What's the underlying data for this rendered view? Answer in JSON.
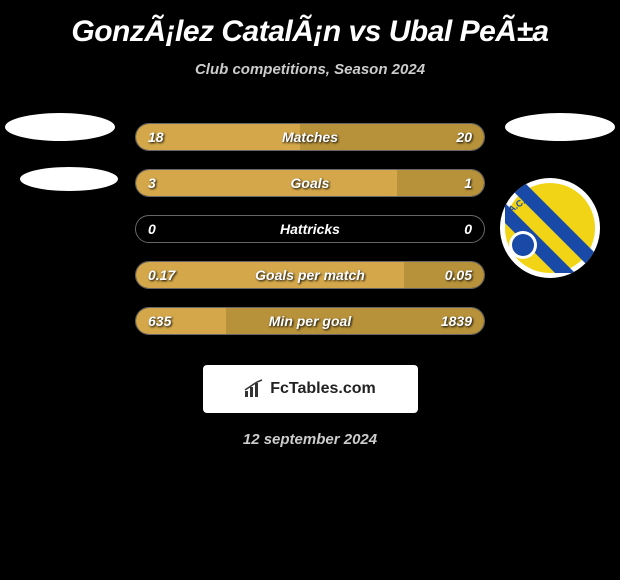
{
  "header": {
    "title": "GonzÃ¡lez CatalÃ¡n vs Ubal PeÃ±a",
    "subtitle": "Club competitions, Season 2024"
  },
  "colors": {
    "background": "#000000",
    "text": "#ffffff",
    "subtext": "#cccccc",
    "bar_border": "#666666",
    "fill_left": "#d4a84a",
    "fill_right": "#c49838"
  },
  "stats": [
    {
      "label": "Matches",
      "left_value": "18",
      "right_value": "20",
      "left_pct": 47,
      "right_pct": 53,
      "left_color": "#d4a84a",
      "right_color": "#b8923a"
    },
    {
      "label": "Goals",
      "left_value": "3",
      "right_value": "1",
      "left_pct": 75,
      "right_pct": 25,
      "left_color": "#d4a84a",
      "right_color": "#b8923a"
    },
    {
      "label": "Hattricks",
      "left_value": "0",
      "right_value": "0",
      "left_pct": 0,
      "right_pct": 0,
      "left_color": "#d4a84a",
      "right_color": "#b8923a"
    },
    {
      "label": "Goals per match",
      "left_value": "0.17",
      "right_value": "0.05",
      "left_pct": 77,
      "right_pct": 23,
      "left_color": "#d4a84a",
      "right_color": "#b8923a"
    },
    {
      "label": "Min per goal",
      "left_value": "635",
      "right_value": "1839",
      "left_pct": 26,
      "right_pct": 74,
      "left_color": "#d4a84a",
      "right_color": "#b8923a"
    }
  ],
  "footer": {
    "brand": "FcTables.com",
    "date": "12 september 2024"
  },
  "badge": {
    "name": "A.C. Barneche",
    "primary": "#f2d417",
    "secondary": "#1a4aa8"
  }
}
